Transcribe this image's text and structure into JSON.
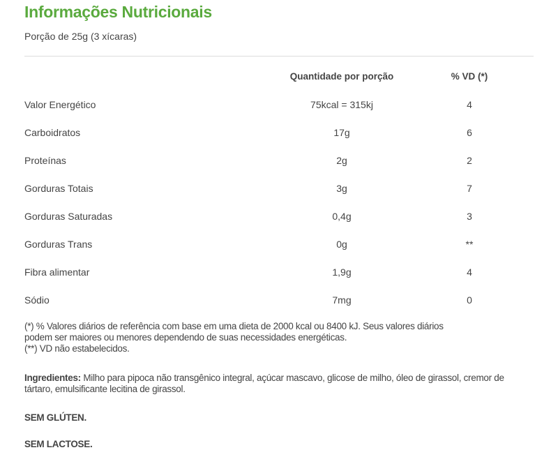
{
  "title": "Informações Nutricionais",
  "portion": "Porção de 25g (3 xícaras)",
  "table": {
    "headers": {
      "quantity": "Quantidade por porção",
      "vd": "% VD (*)"
    },
    "rows": [
      {
        "name": "Valor Energético",
        "qty": "75kcal = 315kj",
        "vd": "4"
      },
      {
        "name": "Carboidratos",
        "qty": "17g",
        "vd": "6"
      },
      {
        "name": "Proteínas",
        "qty": "2g",
        "vd": "2"
      },
      {
        "name": "Gorduras Totais",
        "qty": "3g",
        "vd": "7"
      },
      {
        "name": "Gorduras Saturadas",
        "qty": "0,4g",
        "vd": "3"
      },
      {
        "name": "Gorduras Trans",
        "qty": "0g",
        "vd": "**"
      },
      {
        "name": "Fibra alimentar",
        "qty": "1,9g",
        "vd": "4"
      },
      {
        "name": "Sódio",
        "qty": "7mg",
        "vd": "0"
      }
    ]
  },
  "footnotes": {
    "line1": "(*) % Valores diários de referência com base em uma dieta de 2000 kcal ou 8400 kJ. Seus valores diários",
    "line2": "podem ser maiores ou menores dependendo de suas necessidades energéticas.",
    "line3": "(**) VD não estabelecidos."
  },
  "ingredients": {
    "label": "Ingredientes:",
    "text": " Milho para pipoca não transgênico integral, açúcar mascavo, glicose de milho, óleo de girassol, cremor de tártaro, emulsificante lecitina de girassol."
  },
  "claims": [
    "SEM GLÚTEN.",
    "SEM LACTOSE."
  ],
  "colors": {
    "title": "#5aaa3e",
    "text": "#444444"
  }
}
